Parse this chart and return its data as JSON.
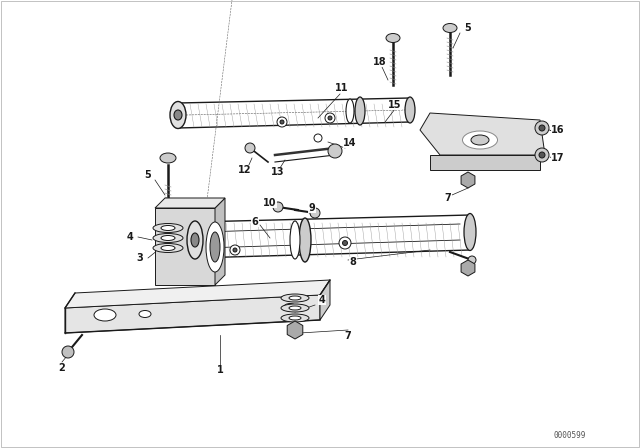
{
  "bg_color": "#ffffff",
  "line_color": "#1a1a1a",
  "fig_width": 6.4,
  "fig_height": 4.48,
  "dpi": 100,
  "watermark": "0000599",
  "border_color": "#cccccc"
}
